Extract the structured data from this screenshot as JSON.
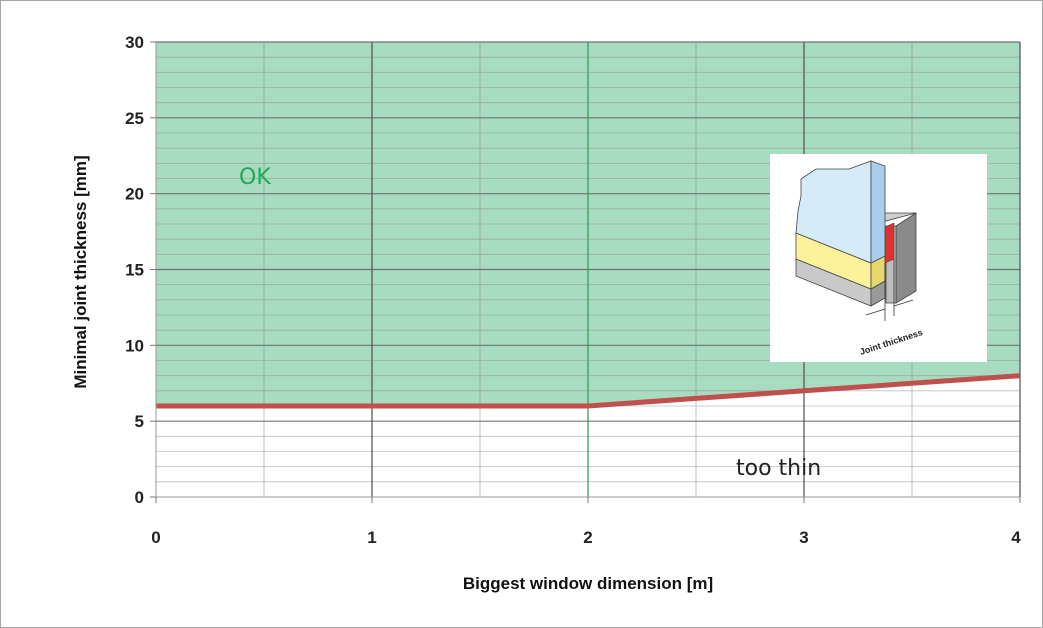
{
  "chart_data": {
    "type": "area",
    "xlabel": "Biggest window dimension [m]",
    "ylabel": "Minimal joint thickness [mm]",
    "xlim": [
      0,
      4
    ],
    "ylim": [
      0,
      30
    ],
    "x_ticks": [
      "0",
      "1",
      "2",
      "3",
      "4"
    ],
    "y_ticks": [
      "0",
      "5",
      "10",
      "15",
      "20",
      "25",
      "30"
    ],
    "grid": true,
    "series": [
      {
        "x": [
          0,
          0.5,
          1,
          1.5,
          2,
          2.5,
          3,
          3.5,
          4
        ],
        "y": [
          6,
          6,
          6,
          6,
          6,
          6.5,
          7,
          7.5,
          8
        ]
      }
    ],
    "regions": {
      "above": {
        "label": "OK",
        "color": "#a8dcc0"
      },
      "below": {
        "label": "too thin",
        "color": "#ffffff"
      }
    },
    "colors": {
      "threshold_line": "#c0504d",
      "ok_label": "#22a85c",
      "grid": "#555555"
    },
    "inset": {
      "caption": "Joint thickness"
    }
  }
}
